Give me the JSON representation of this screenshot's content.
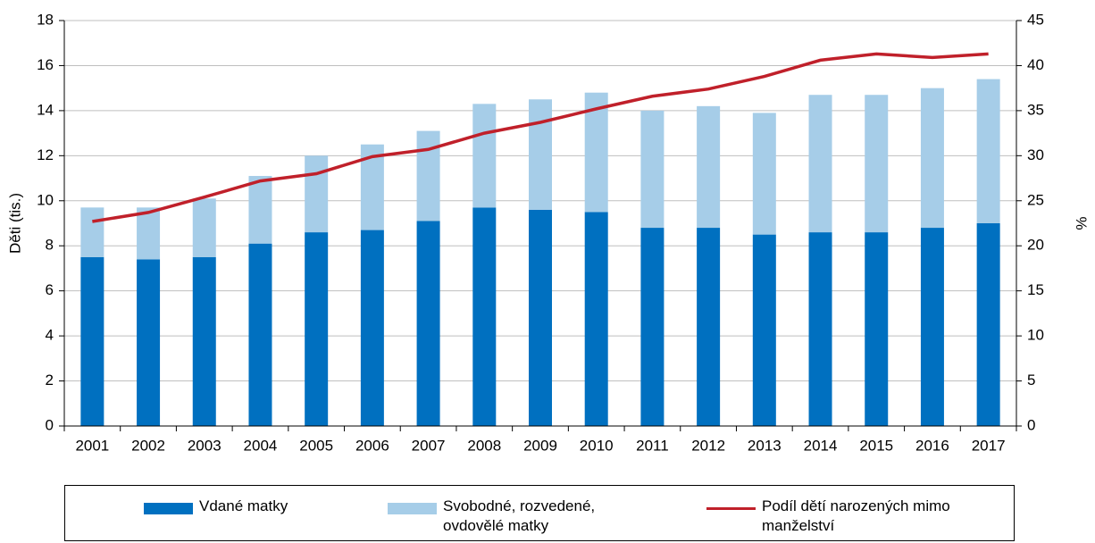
{
  "chart_data": {
    "type": "bar",
    "stacked": true,
    "y_label": "Děti (tis.)",
    "y2_label": "%",
    "categories": [
      "2001",
      "2002",
      "2003",
      "2004",
      "2005",
      "2006",
      "2007",
      "2008",
      "2009",
      "2010",
      "2011",
      "2012",
      "2013",
      "2014",
      "2015",
      "2016",
      "2017"
    ],
    "series": [
      {
        "name": "Vdané matky",
        "color": "#0070c0",
        "values": [
          7.5,
          7.4,
          7.5,
          8.1,
          8.6,
          8.7,
          9.1,
          9.7,
          9.6,
          9.5,
          8.8,
          8.8,
          8.5,
          8.6,
          8.6,
          8.8,
          9.0
        ]
      },
      {
        "name": "Svobodné, rozvedené, ovdovělé matky",
        "color": "#a6cde8",
        "values": [
          2.2,
          2.3,
          2.6,
          3.0,
          3.4,
          3.8,
          4.0,
          4.6,
          4.9,
          5.3,
          5.2,
          5.4,
          5.4,
          6.1,
          6.1,
          6.2,
          6.4
        ]
      },
      {
        "name": "Podíl dětí narozených mimo manželství",
        "color": "#c0202a",
        "type": "line",
        "axis": "y2",
        "values": [
          22.7,
          23.7,
          25.4,
          27.2,
          28.0,
          29.9,
          30.7,
          32.5,
          33.7,
          35.2,
          36.6,
          37.4,
          38.8,
          40.6,
          41.3,
          40.9,
          41.3
        ]
      }
    ],
    "ylim": [
      0,
      18
    ],
    "yticks": [
      0,
      2,
      4,
      6,
      8,
      10,
      12,
      14,
      16,
      18
    ],
    "y2lim": [
      0,
      45
    ],
    "y2ticks": [
      0,
      5,
      10,
      15,
      20,
      25,
      30,
      35,
      40,
      45
    ],
    "grid": true,
    "legend": "bottom"
  }
}
